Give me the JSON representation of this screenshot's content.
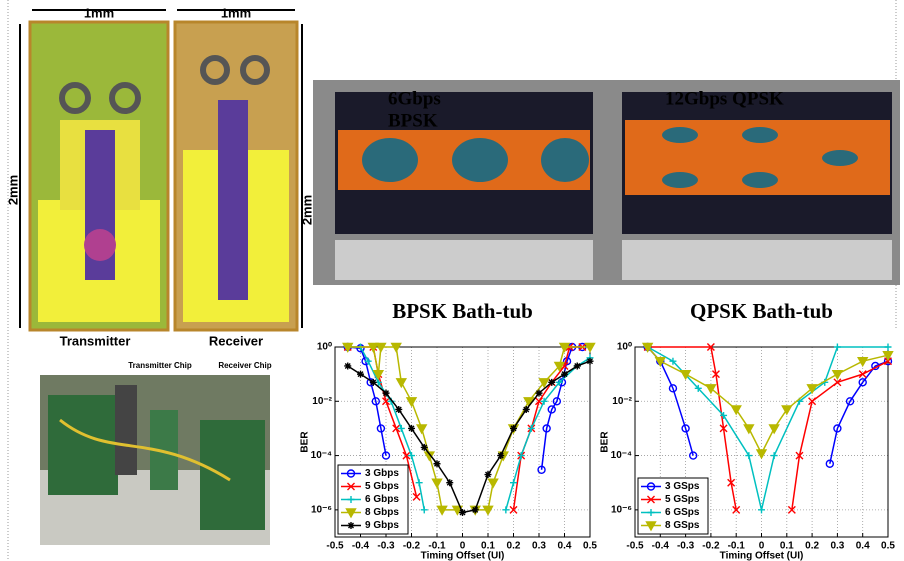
{
  "figure": {
    "chip_width_labels": [
      "1mm",
      "1mm"
    ],
    "chip_height_labels": [
      "2mm",
      "2mm"
    ],
    "chip_names": [
      "Transmitter",
      "Receiver"
    ],
    "photo_labels": [
      "Transmitter Chip",
      "Receiver Chip"
    ],
    "scope_labels": [
      "6Gbps",
      "BPSK",
      "12Gbps QPSK"
    ]
  },
  "chart_data": [
    {
      "type": "line",
      "title": "BPSK Bath-tub",
      "x_label": "Timing Offset (UI)",
      "y_label": "BER",
      "log_y": true,
      "grid": true,
      "legend": "lower left",
      "xlim": [
        -0.5,
        0.5
      ],
      "ylim": [
        1e-07,
        1
      ],
      "xticks": [
        -0.5,
        -0.4,
        -0.3,
        -0.2,
        -0.1,
        0,
        0.1,
        0.2,
        0.3,
        0.4,
        0.5
      ],
      "yticks": [
        {
          "value": 1,
          "label": "10⁰"
        },
        {
          "value": 0.01,
          "label": "10⁻²"
        },
        {
          "value": 0.0001,
          "label": "10⁻⁴"
        },
        {
          "value": 1e-06,
          "label": "10⁻⁶"
        }
      ],
      "series": [
        {
          "name": "3 Gbps",
          "color": "#0000ff",
          "marker": "circle",
          "x": [
            -0.45,
            -0.4,
            -0.38,
            -0.36,
            -0.34,
            -0.32,
            -0.3,
            null,
            0.31,
            0.33,
            0.35,
            0.37,
            0.39,
            0.41,
            0.43,
            0.47
          ],
          "values": [
            1,
            0.9,
            0.3,
            0.05,
            0.01,
            0.001,
            0.0001,
            null,
            3e-05,
            0.001,
            0.005,
            0.01,
            0.05,
            0.3,
            1,
            1
          ]
        },
        {
          "name": "5 Gbps",
          "color": "#ff0000",
          "marker": "x",
          "x": [
            -0.45,
            -0.35,
            -0.33,
            -0.3,
            -0.26,
            -0.22,
            -0.18,
            null,
            0.2,
            0.23,
            0.27,
            0.3,
            0.35,
            0.4,
            0.42,
            0.47
          ],
          "values": [
            1,
            1,
            0.1,
            0.01,
            0.001,
            0.0001,
            3e-06,
            null,
            1e-06,
            0.0001,
            0.001,
            0.01,
            0.05,
            0.2,
            1,
            1
          ]
        },
        {
          "name": "6 Gbps",
          "color": "#00c0c0",
          "marker": "plus",
          "x": [
            -0.45,
            -0.4,
            -0.37,
            -0.33,
            -0.28,
            -0.24,
            -0.2,
            -0.17,
            -0.15,
            null,
            0.17,
            0.2,
            0.23,
            0.27,
            0.32,
            0.38,
            0.45,
            0.5
          ],
          "values": [
            1,
            1,
            0.3,
            0.05,
            0.01,
            0.001,
            0.0001,
            1e-05,
            1e-06,
            null,
            1e-06,
            1e-05,
            0.0001,
            0.001,
            0.01,
            0.05,
            0.2,
            0.4
          ]
        },
        {
          "name": "8 Gbps",
          "color": "#b8b800",
          "marker": "triangle",
          "x": [
            -0.45,
            -0.35,
            -0.33,
            -0.32,
            -0.26,
            -0.24,
            -0.2,
            -0.16,
            -0.13,
            -0.1,
            -0.08,
            -0.02,
            null,
            0.05,
            0.1,
            0.12,
            0.16,
            0.2,
            0.26,
            0.32,
            0.38,
            0.4,
            0.5
          ],
          "values": [
            1,
            1,
            0.1,
            1,
            1,
            0.05,
            0.01,
            0.001,
            0.0001,
            1e-05,
            1e-06,
            1e-06,
            null,
            1e-06,
            1e-06,
            1e-05,
            0.0001,
            0.001,
            0.01,
            0.05,
            0.2,
            1,
            1
          ]
        },
        {
          "name": "9 Gbps",
          "color": "#000000",
          "marker": "star",
          "x": [
            -0.45,
            -0.4,
            -0.35,
            -0.3,
            -0.25,
            -0.2,
            -0.15,
            -0.1,
            -0.05,
            0,
            0.05,
            0.1,
            0.15,
            0.2,
            0.25,
            0.3,
            0.35,
            0.4,
            0.45,
            0.5
          ],
          "values": [
            0.2,
            0.1,
            0.05,
            0.02,
            0.005,
            0.001,
            0.0002,
            5e-05,
            1e-05,
            8e-07,
            1e-06,
            2e-05,
            0.0001,
            0.001,
            0.005,
            0.02,
            0.05,
            0.1,
            0.2,
            0.3
          ]
        }
      ]
    },
    {
      "type": "line",
      "title": "QPSK Bath-tub",
      "x_label": "Timing Offset (UI)",
      "y_label": "BER",
      "log_y": true,
      "grid": true,
      "legend": "lower left",
      "xlim": [
        -0.5,
        0.5
      ],
      "ylim": [
        1e-07,
        1
      ],
      "xticks": [
        -0.5,
        -0.4,
        -0.3,
        -0.2,
        -0.1,
        0,
        0.1,
        0.2,
        0.3,
        0.4,
        0.5
      ],
      "yticks": [
        {
          "value": 1,
          "label": "10⁰"
        },
        {
          "value": 0.01,
          "label": "10⁻²"
        },
        {
          "value": 0.0001,
          "label": "10⁻⁴"
        },
        {
          "value": 1e-06,
          "label": "10⁻⁶"
        }
      ],
      "series": [
        {
          "name": "3 GSps",
          "color": "#0000ff",
          "marker": "circle",
          "x": [
            -0.45,
            -0.4,
            -0.35,
            -0.3,
            -0.27,
            null,
            0.27,
            0.3,
            0.35,
            0.4,
            0.45,
            0.5
          ],
          "values": [
            1,
            0.3,
            0.03,
            0.001,
            0.0001,
            null,
            5e-05,
            0.001,
            0.01,
            0.05,
            0.2,
            0.3
          ]
        },
        {
          "name": "5 GSps",
          "color": "#ff0000",
          "marker": "x",
          "x": [
            -0.45,
            -0.2,
            -0.18,
            -0.15,
            -0.12,
            -0.1,
            null,
            0.12,
            0.15,
            0.2,
            0.3,
            0.4,
            0.5
          ],
          "values": [
            1,
            1,
            0.1,
            0.001,
            1e-05,
            1e-06,
            null,
            1e-06,
            0.0001,
            0.01,
            0.05,
            0.1,
            0.3
          ]
        },
        {
          "name": "6 GSps",
          "color": "#00c0c0",
          "marker": "plus",
          "x": [
            -0.45,
            -0.35,
            -0.25,
            -0.15,
            -0.05,
            0,
            0.05,
            0.15,
            0.25,
            0.3,
            0.5
          ],
          "values": [
            1,
            0.3,
            0.03,
            0.003,
            0.0001,
            1e-06,
            0.0001,
            0.01,
            0.05,
            1,
            1
          ]
        },
        {
          "name": "8 GSps",
          "color": "#b8b800",
          "marker": "triangle",
          "x": [
            -0.45,
            -0.4,
            -0.3,
            -0.2,
            -0.1,
            -0.05,
            0,
            0.05,
            0.1,
            0.2,
            0.3,
            0.4,
            0.5
          ],
          "values": [
            1,
            0.3,
            0.1,
            0.03,
            0.005,
            0.001,
            0.00012,
            0.001,
            0.005,
            0.03,
            0.1,
            0.3,
            0.5
          ]
        }
      ]
    }
  ]
}
